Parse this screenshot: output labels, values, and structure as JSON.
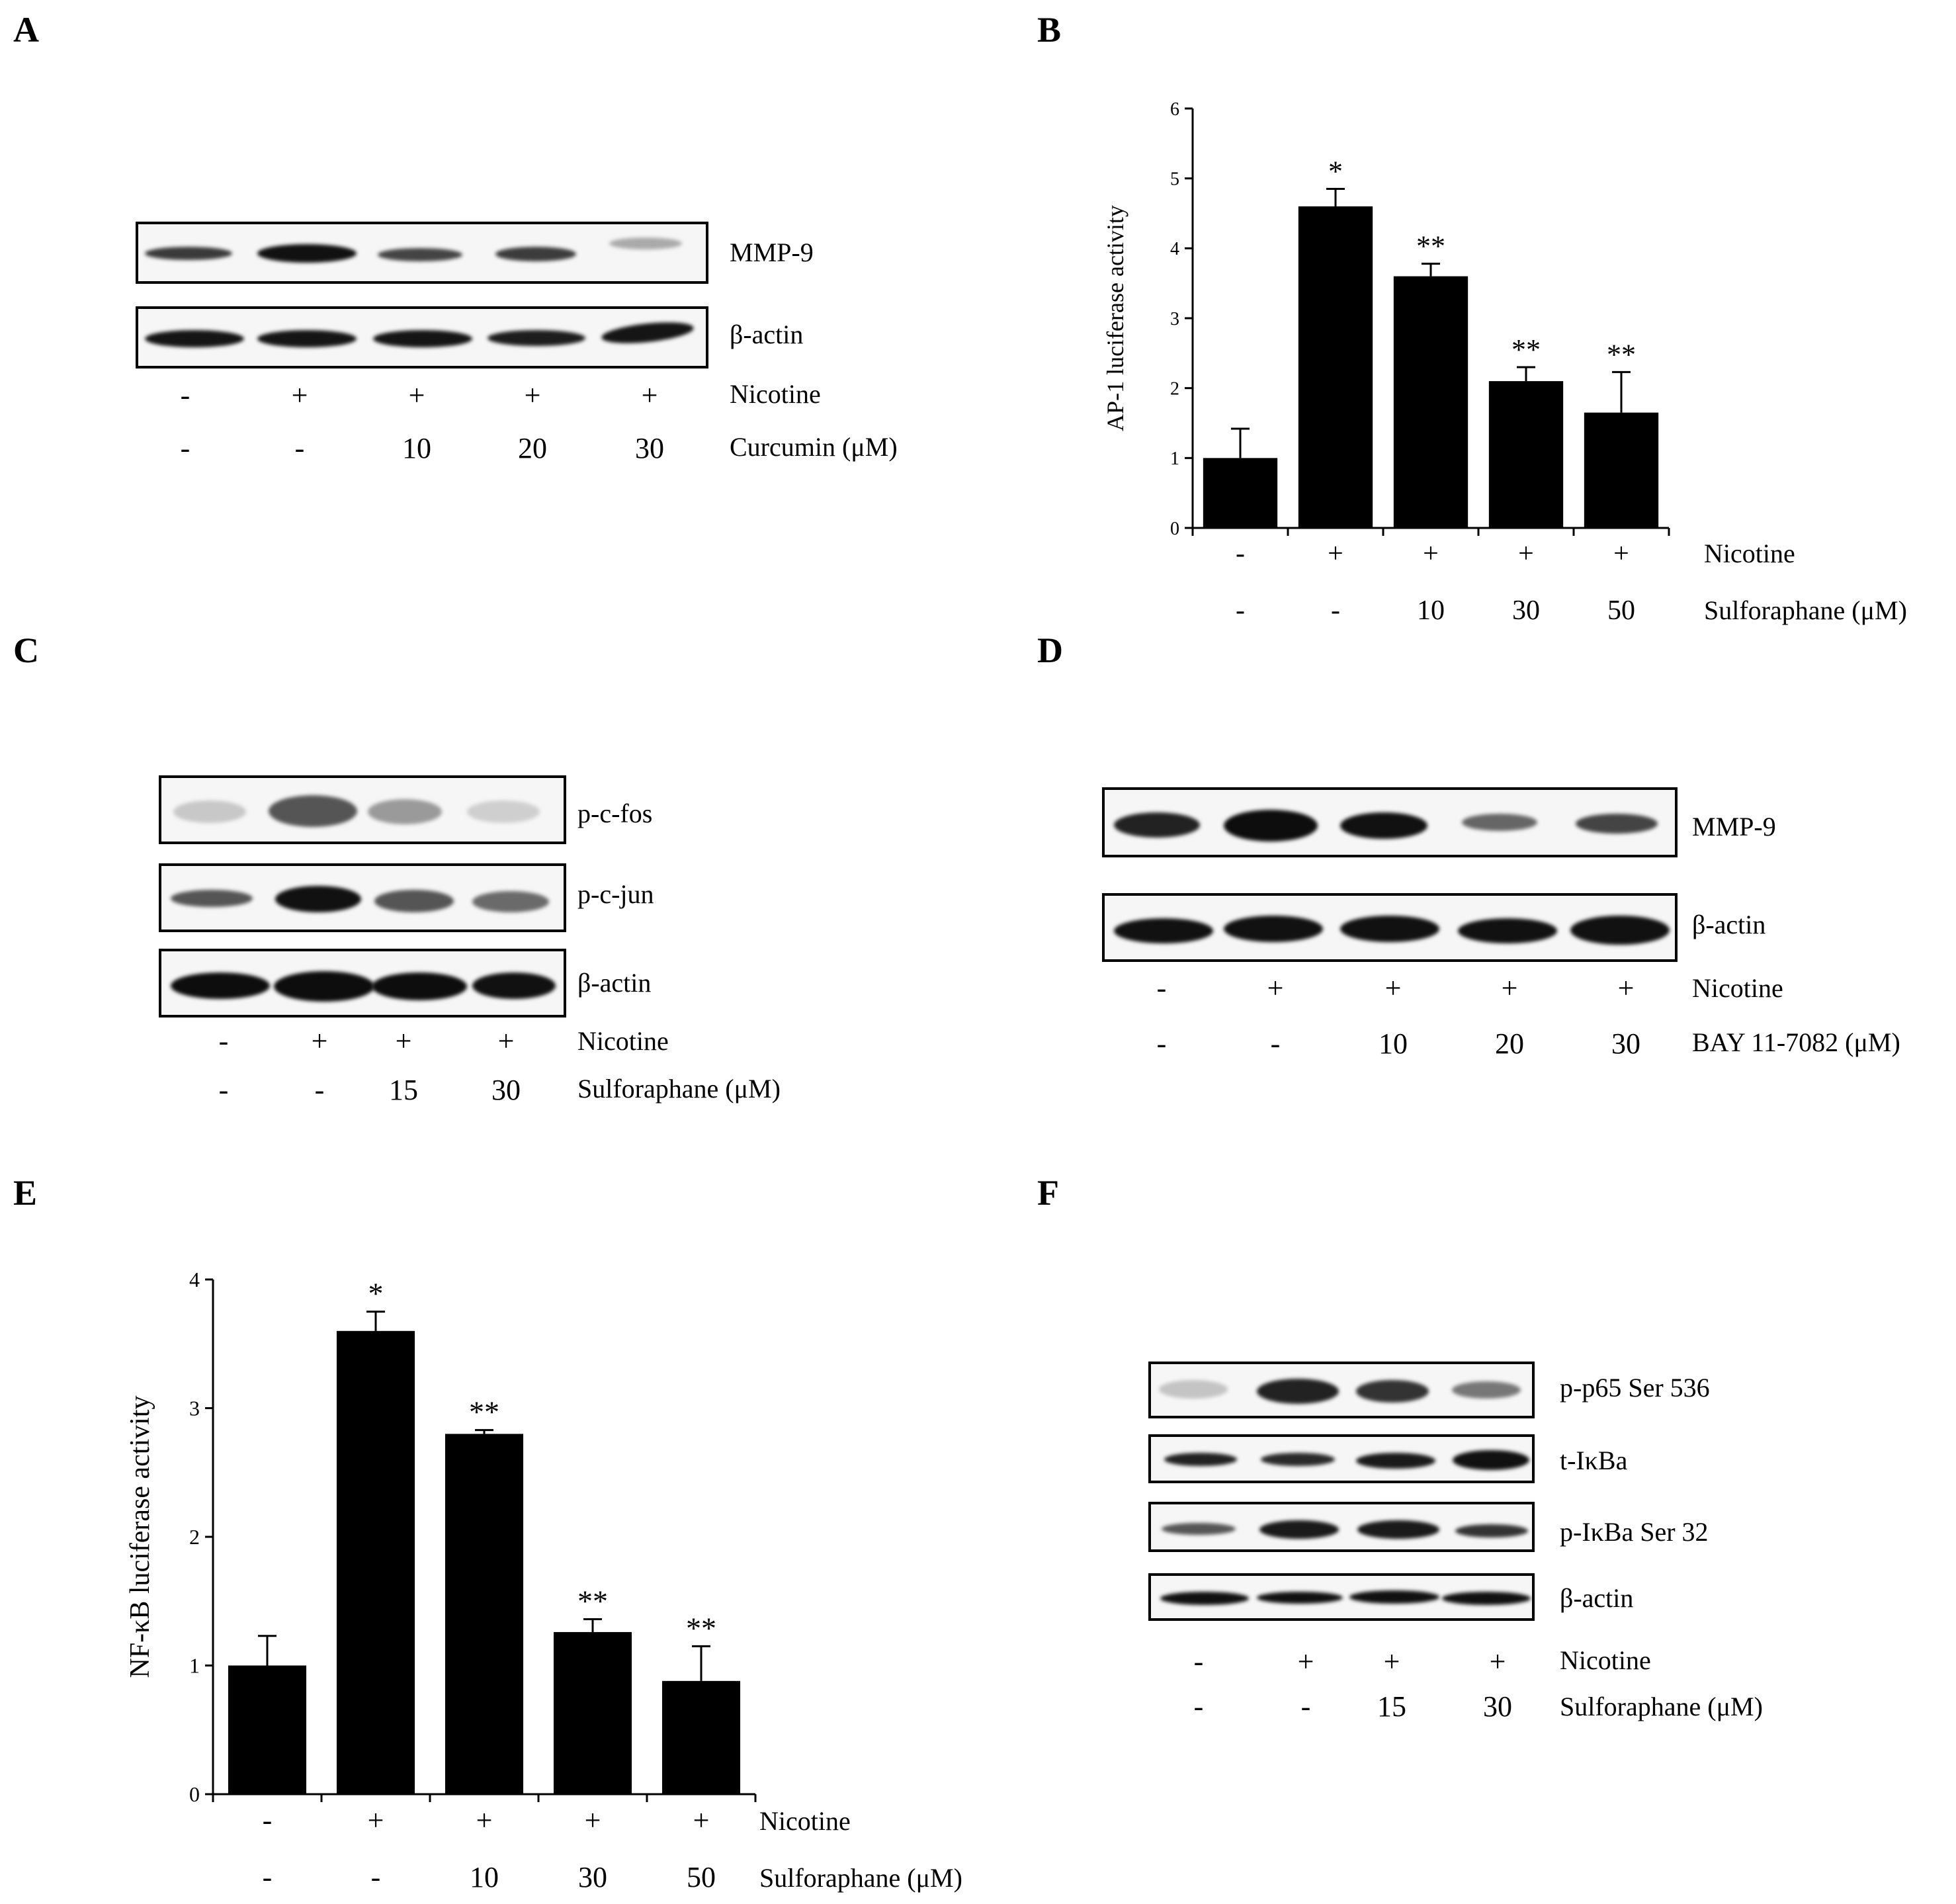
{
  "figure": {
    "panels": {
      "A": {
        "letter": "A",
        "blots": [
          "MMP-9",
          "β-actin"
        ],
        "rows": [
          {
            "label": "Nicotine",
            "values": [
              "-",
              "+",
              "+",
              "+",
              "+"
            ]
          },
          {
            "label": "Curcumin (μM)",
            "values": [
              "-",
              "-",
              "10",
              "20",
              "30"
            ]
          }
        ]
      },
      "B": {
        "letter": "B"
      },
      "C": {
        "letter": "C",
        "blots": [
          "p-c-fos",
          "p-c-jun",
          "β-actin"
        ],
        "rows": [
          {
            "label": "Nicotine",
            "values": [
              "-",
              "+",
              "+",
              "+"
            ]
          },
          {
            "label": "Sulforaphane (μM)",
            "values": [
              "-",
              "-",
              "15",
              "30"
            ]
          }
        ]
      },
      "D": {
        "letter": "D",
        "blots": [
          "MMP-9",
          "β-actin"
        ],
        "rows": [
          {
            "label": "Nicotine",
            "values": [
              "-",
              "+",
              "+",
              "+",
              "+"
            ]
          },
          {
            "label": "BAY 11-7082 (μM)",
            "values": [
              "-",
              "-",
              "10",
              "20",
              "30"
            ]
          }
        ]
      },
      "E": {
        "letter": "E"
      },
      "F": {
        "letter": "F",
        "blots": [
          "p-p65 Ser 536",
          "t-IκBa",
          "p-IκBa Ser 32",
          "β-actin"
        ],
        "rows": [
          {
            "label": "Nicotine",
            "values": [
              "-",
              "+",
              "+",
              "+"
            ]
          },
          {
            "label": "Sulforaphane (μM)",
            "values": [
              "-",
              "-",
              "15",
              "30"
            ]
          }
        ]
      }
    }
  },
  "chart_data": [
    {
      "panel": "B",
      "type": "bar",
      "ylabel": "AP-1 luciferase activity",
      "ylim": [
        0,
        6
      ],
      "yticks": [
        "0",
        "1",
        "2",
        "3",
        "4",
        "5",
        "6"
      ],
      "values": [
        1.0,
        4.6,
        3.6,
        2.1,
        1.65
      ],
      "errors": [
        0.42,
        0.25,
        0.18,
        0.2,
        0.58
      ],
      "annotations": [
        "",
        "*",
        "**",
        "**",
        "**"
      ],
      "rows": [
        {
          "label": "Nicotine",
          "values": [
            "-",
            "+",
            "+",
            "+",
            "+"
          ]
        },
        {
          "label": "Sulforaphane (μM)",
          "values": [
            "-",
            "-",
            "10",
            "30",
            "50"
          ]
        }
      ]
    },
    {
      "panel": "E",
      "type": "bar",
      "ylabel": "NF-κB luciferase activity",
      "ylim": [
        0,
        4
      ],
      "yticks": [
        "0",
        "1",
        "2",
        "3",
        "4"
      ],
      "values": [
        1.0,
        3.6,
        2.8,
        1.26,
        0.88
      ],
      "errors": [
        0.23,
        0.15,
        0.03,
        0.1,
        0.27
      ],
      "annotations": [
        "",
        "*",
        "**",
        "**",
        "**"
      ],
      "rows": [
        {
          "label": "Nicotine",
          "values": [
            "-",
            "+",
            "+",
            "+",
            "+"
          ]
        },
        {
          "label": "Sulforaphane (μM)",
          "values": [
            "-",
            "-",
            "10",
            "30",
            "50"
          ]
        }
      ]
    }
  ]
}
